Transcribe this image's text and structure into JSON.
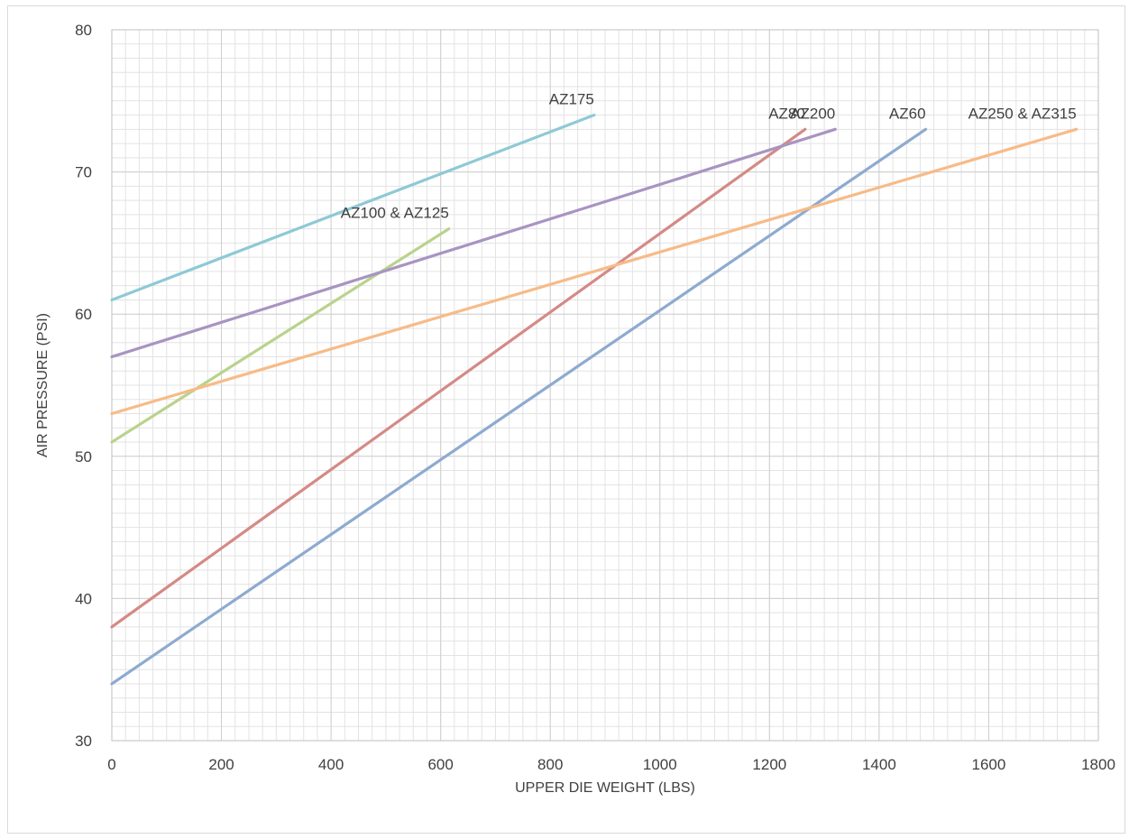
{
  "chart_data": {
    "type": "line",
    "title": "",
    "xlabel": "UPPER DIE WEIGHT (LBS)",
    "ylabel": "AIR PRESSURE (PSI)",
    "xlim": [
      0,
      1800
    ],
    "ylim": [
      30,
      80
    ],
    "x_ticks": [
      0,
      200,
      400,
      600,
      800,
      1000,
      1200,
      1400,
      1600,
      1800
    ],
    "y_ticks": [
      30,
      40,
      50,
      60,
      70,
      80
    ],
    "x_tick_labels": [
      "0",
      "200",
      "400",
      "600",
      "800",
      "1000",
      "1200",
      "1400",
      "1600",
      "1800"
    ],
    "y_tick_labels": [
      "30",
      "40",
      "50",
      "60",
      "70",
      "80"
    ],
    "grid": "on (minor gridlines every 25 lbs and 1 psi)",
    "legend": "none (series labeled inline at line ends)",
    "series": [
      {
        "name": "AZ175",
        "color": "#8ec9d6",
        "x": [
          0,
          880
        ],
        "y": [
          61,
          74
        ]
      },
      {
        "name": "AZ100 & AZ125",
        "color": "#b9d38c",
        "x": [
          0,
          615
        ],
        "y": [
          51,
          66
        ]
      },
      {
        "name": "AZ80",
        "color": "#d48a86",
        "x": [
          0,
          1265
        ],
        "y": [
          38,
          73
        ]
      },
      {
        "name": "AZ200",
        "color": "#a894c2",
        "x": [
          0,
          1320
        ],
        "y": [
          57,
          73
        ]
      },
      {
        "name": "AZ60",
        "color": "#8eaad0",
        "x": [
          0,
          1485
        ],
        "y": [
          34,
          73
        ]
      },
      {
        "name": "AZ250 & AZ315",
        "color": "#f7bb88",
        "x": [
          0,
          1760
        ],
        "y": [
          53,
          73
        ]
      }
    ]
  }
}
